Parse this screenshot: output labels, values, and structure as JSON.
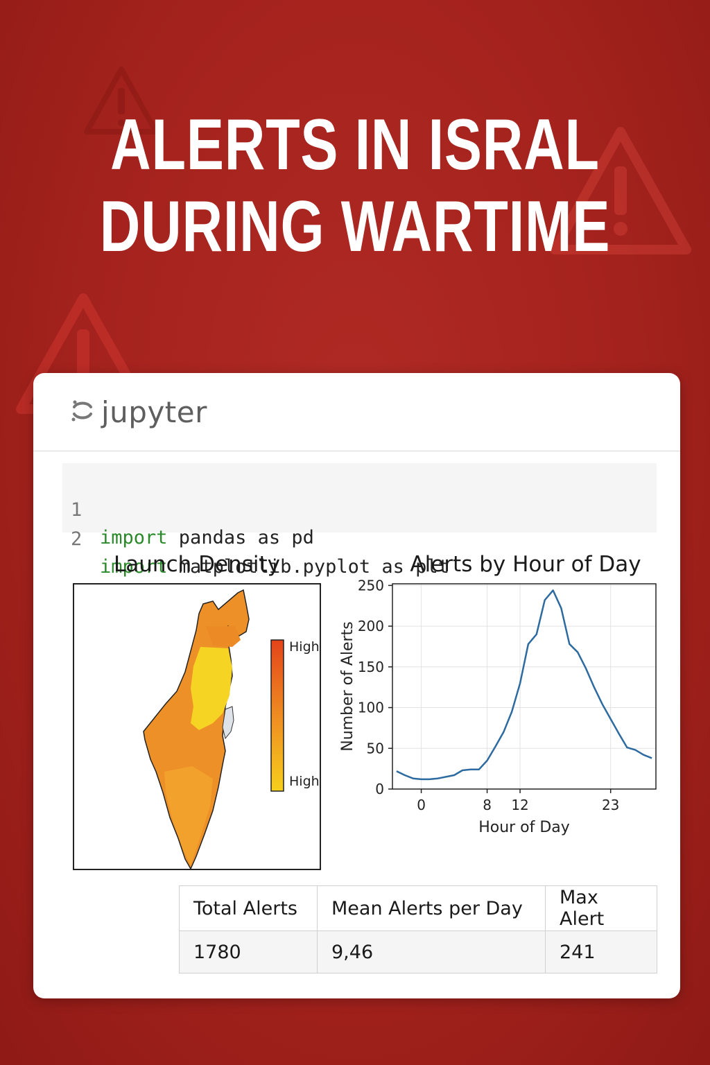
{
  "colors": {
    "background": "#a4221d",
    "card": "#ffffff",
    "keyword": "#2a8a2a",
    "line": "#2c6aa0"
  },
  "headline": {
    "line1": "ALERTS IN ISRAL",
    "line2": "DURING WARTIME"
  },
  "app": {
    "name": "jupyter",
    "logo_icon": "jupyter-logo-icon"
  },
  "code": {
    "lines": [
      {
        "no": "1",
        "keyword": "import",
        "rest": " pandas as pd"
      },
      {
        "no": "2",
        "keyword": "import",
        "rest": " matplotlib.pyplot as plt"
      }
    ]
  },
  "map_panel": {
    "title": "Launch Density",
    "legend_top": "High",
    "legend_bottom": "High"
  },
  "chart_data": {
    "type": "line",
    "title": "Alerts by Hour of Day",
    "xlabel": "Hour of Day",
    "ylabel": "Number of Alerts",
    "xticks": [
      0,
      8,
      12,
      23
    ],
    "yticks": [
      0,
      50,
      100,
      150,
      200,
      250
    ],
    "xlim": [
      -3.5,
      28.5
    ],
    "ylim": [
      0,
      252
    ],
    "grid": true,
    "series": [
      {
        "x": [
          -3,
          -2,
          -1,
          0,
          1,
          2,
          3,
          4,
          5,
          6,
          7,
          8,
          9,
          10,
          11,
          12,
          13,
          14,
          15,
          16,
          17,
          18,
          19,
          20,
          21,
          22,
          23,
          24,
          25,
          26,
          27,
          28
        ],
        "values": [
          22,
          17,
          13,
          12,
          12,
          13,
          15,
          17,
          23,
          24,
          24,
          35,
          52,
          70,
          95,
          130,
          178,
          190,
          232,
          244,
          222,
          178,
          168,
          148,
          125,
          104,
          86,
          68,
          51,
          48,
          42,
          38
        ]
      }
    ]
  },
  "stats": {
    "headers": [
      "Total Alerts",
      "Mean Alerts per Day",
      "Max Alert"
    ],
    "values": [
      "1780",
      "9,46",
      "241"
    ]
  }
}
